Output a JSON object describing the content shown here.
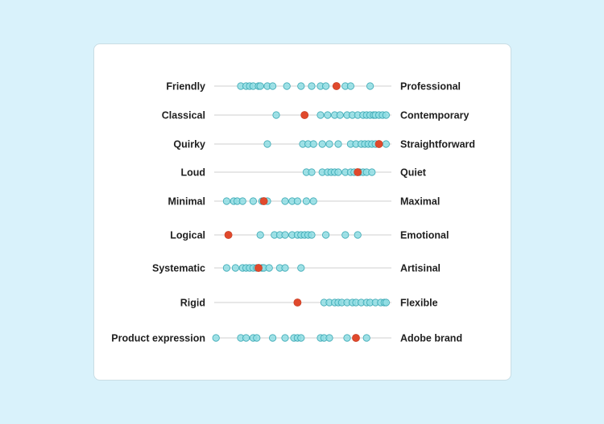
{
  "chart_data": {
    "type": "scatter",
    "title": "",
    "xlim": [
      0,
      1
    ],
    "colors": {
      "response": "#8fdde3",
      "response_stroke": "#3aa8b4",
      "highlight": "#e0492c",
      "axis": "#cfcfcf"
    },
    "rows": [
      {
        "left": "Friendly",
        "right": "Professional",
        "points": [
          0.15,
          0.18,
          0.2,
          0.22,
          0.25,
          0.26,
          0.3,
          0.33,
          0.41,
          0.49,
          0.55,
          0.6,
          0.63,
          0.74,
          0.77,
          0.88
        ],
        "highlight": 0.69
      },
      {
        "left": "Classical",
        "right": "Contemporary",
        "points": [
          0.35,
          0.6,
          0.64,
          0.68,
          0.71,
          0.75,
          0.78,
          0.81,
          0.84,
          0.86,
          0.88,
          0.9,
          0.91,
          0.93,
          0.95,
          0.97
        ],
        "highlight": 0.51
      },
      {
        "left": "Quirky",
        "right": "Straightforward",
        "points": [
          0.3,
          0.5,
          0.53,
          0.56,
          0.61,
          0.65,
          0.7,
          0.77,
          0.8,
          0.83,
          0.85,
          0.87,
          0.89,
          0.91,
          0.93,
          0.97
        ],
        "highlight": 0.93
      },
      {
        "left": "Loud",
        "right": "Quiet",
        "points": [
          0.52,
          0.55,
          0.61,
          0.64,
          0.66,
          0.68,
          0.7,
          0.74,
          0.77,
          0.79,
          0.82,
          0.84,
          0.86,
          0.89
        ],
        "highlight": 0.81
      },
      {
        "left": "Minimal",
        "right": "Maximal",
        "points": [
          0.07,
          0.11,
          0.13,
          0.16,
          0.22,
          0.27,
          0.3,
          0.4,
          0.44,
          0.47,
          0.52,
          0.56
        ],
        "highlight": 0.28
      },
      {
        "left": "Logical",
        "right": "Emotional",
        "points": [
          0.26,
          0.34,
          0.37,
          0.4,
          0.44,
          0.47,
          0.49,
          0.51,
          0.53,
          0.55,
          0.63,
          0.74,
          0.81
        ],
        "highlight": 0.08
      },
      {
        "left": "Systematic",
        "right": "Artisinal",
        "points": [
          0.07,
          0.12,
          0.16,
          0.18,
          0.2,
          0.22,
          0.24,
          0.27,
          0.28,
          0.31,
          0.37,
          0.4,
          0.49
        ],
        "highlight": 0.25
      },
      {
        "left": "Rigid",
        "right": "Flexible",
        "points": [
          0.62,
          0.65,
          0.68,
          0.7,
          0.72,
          0.75,
          0.78,
          0.8,
          0.83,
          0.86,
          0.88,
          0.91,
          0.94,
          0.96,
          0.97
        ],
        "highlight": 0.47
      },
      {
        "left": "Product expression",
        "right": "Adobe brand",
        "points": [
          0.01,
          0.15,
          0.18,
          0.22,
          0.24,
          0.33,
          0.4,
          0.45,
          0.47,
          0.49,
          0.6,
          0.62,
          0.65,
          0.75,
          0.86
        ],
        "highlight": 0.8
      }
    ]
  }
}
